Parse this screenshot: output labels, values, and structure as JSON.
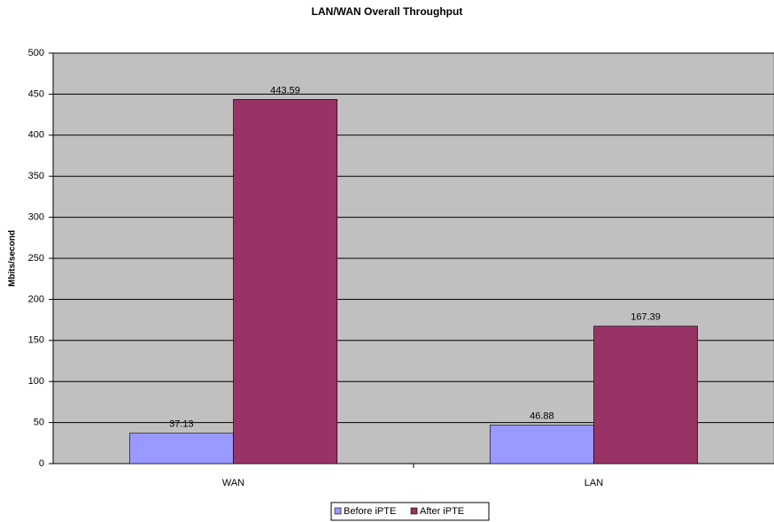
{
  "chart_data": {
    "type": "bar",
    "title": "LAN/WAN Overall Throughput",
    "y_label": "Mbits/second",
    "categories": [
      "WAN",
      "LAN"
    ],
    "series": [
      {
        "name": "Before iPTE",
        "color": "#9999ff",
        "values": [
          37.13,
          46.88
        ]
      },
      {
        "name": "After iPTE",
        "color": "#993366",
        "values": [
          443.59,
          167.39
        ]
      }
    ],
    "ylim": [
      0,
      500
    ],
    "yticks": [
      0,
      50,
      100,
      150,
      200,
      250,
      300,
      350,
      400,
      450,
      500
    ],
    "grid": true,
    "legend": "bottom"
  }
}
